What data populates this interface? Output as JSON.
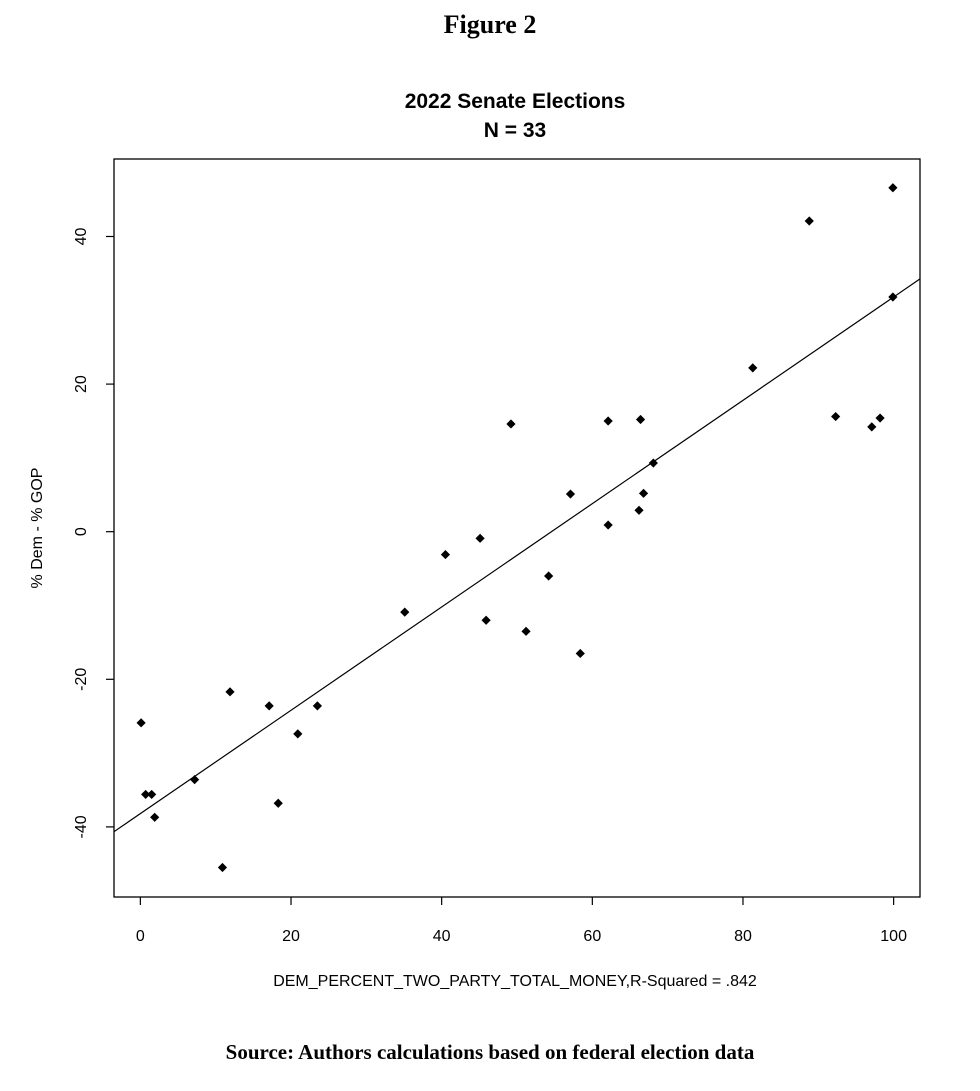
{
  "figure_heading": "Figure 2",
  "source_note": "Source: Authors calculations based on federal election data",
  "chart_data": {
    "type": "scatter",
    "title": "2022 Senate Elections",
    "subtitle": "N = 33",
    "xlabel": "DEM_PERCENT_TWO_PARTY_TOTAL_MONEY,R-Squared = .842",
    "ylabel": "% Dem - % GOP",
    "xlim": [
      -3.5,
      103.5
    ],
    "ylim": [
      -49.5,
      50.5
    ],
    "x_ticks": [
      0,
      20,
      40,
      60,
      80,
      100
    ],
    "x_tick_labels": [
      "0",
      "20",
      "40",
      "60",
      "80",
      "100"
    ],
    "y_ticks": [
      -40,
      -20,
      0,
      20,
      40
    ],
    "y_tick_labels": [
      "-40",
      "-20",
      "0",
      "20",
      "40"
    ],
    "grid": false,
    "legend": "none",
    "colors": {
      "points": "#000000",
      "fit_line": "#000000",
      "axis_label": "#000000"
    },
    "points": [
      {
        "x": 0.1,
        "y": -25.9
      },
      {
        "x": 0.7,
        "y": -35.6
      },
      {
        "x": 1.5,
        "y": -35.6
      },
      {
        "x": 1.9,
        "y": -38.7
      },
      {
        "x": 7.2,
        "y": -33.6
      },
      {
        "x": 10.9,
        "y": -45.5
      },
      {
        "x": 11.9,
        "y": -21.7
      },
      {
        "x": 17.1,
        "y": -23.6
      },
      {
        "x": 18.3,
        "y": -36.8
      },
      {
        "x": 20.9,
        "y": -27.4
      },
      {
        "x": 23.5,
        "y": -23.6
      },
      {
        "x": 35.1,
        "y": -10.9
      },
      {
        "x": 40.5,
        "y": -3.1
      },
      {
        "x": 45.1,
        "y": -0.9
      },
      {
        "x": 45.9,
        "y": -12.0
      },
      {
        "x": 49.2,
        "y": 14.6
      },
      {
        "x": 51.2,
        "y": -13.5
      },
      {
        "x": 54.2,
        "y": -6.0
      },
      {
        "x": 57.1,
        "y": 5.1
      },
      {
        "x": 58.4,
        "y": -16.5
      },
      {
        "x": 62.1,
        "y": 15.0
      },
      {
        "x": 62.1,
        "y": 0.9
      },
      {
        "x": 66.2,
        "y": 2.9
      },
      {
        "x": 66.4,
        "y": 15.2
      },
      {
        "x": 66.8,
        "y": 5.2
      },
      {
        "x": 68.1,
        "y": 9.3
      },
      {
        "x": 81.3,
        "y": 22.2
      },
      {
        "x": 88.8,
        "y": 42.1
      },
      {
        "x": 92.3,
        "y": 15.6
      },
      {
        "x": 97.1,
        "y": 14.2
      },
      {
        "x": 98.2,
        "y": 15.4
      },
      {
        "x": 99.9,
        "y": 46.6
      },
      {
        "x": 99.9,
        "y": 31.8
      }
    ],
    "fit_line": {
      "slope": 0.7,
      "intercept": -38.2
    }
  }
}
